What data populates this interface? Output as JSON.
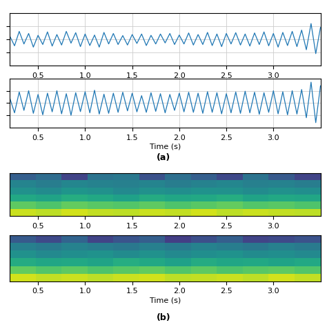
{
  "chart_data": [
    {
      "type": "line",
      "color": "#1f77b4",
      "grid": true,
      "tick_labels": "x",
      "xlim": [
        0.2,
        3.5
      ],
      "xticks": [
        0.5,
        1.0,
        1.5,
        2.0,
        2.5,
        3.0
      ],
      "ylim": [
        -1,
        1
      ],
      "yticks": [
        -0.5,
        0,
        0.5
      ],
      "x": [
        0.2,
        0.25,
        0.3,
        0.35,
        0.4,
        0.45,
        0.5,
        0.55,
        0.6,
        0.65,
        0.7,
        0.75,
        0.8,
        0.85,
        0.9,
        0.95,
        1.0,
        1.05,
        1.1,
        1.15,
        1.2,
        1.25,
        1.3,
        1.35,
        1.4,
        1.45,
        1.5,
        1.55,
        1.6,
        1.65,
        1.7,
        1.75,
        1.8,
        1.85,
        1.9,
        1.95,
        2.0,
        2.05,
        2.1,
        2.15,
        2.2,
        2.25,
        2.3,
        2.35,
        2.4,
        2.45,
        2.5,
        2.55,
        2.6,
        2.65,
        2.7,
        2.75,
        2.8,
        2.85,
        2.9,
        2.95,
        3.0,
        3.05,
        3.1,
        3.15,
        3.2,
        3.25,
        3.3,
        3.35,
        3.4,
        3.45,
        3.5
      ],
      "values": [
        0.12,
        -0.25,
        0.3,
        -0.18,
        0.22,
        -0.3,
        0.15,
        -0.2,
        0.28,
        -0.26,
        0.18,
        -0.22,
        0.3,
        -0.15,
        0.25,
        -0.28,
        0.2,
        -0.24,
        0.16,
        -0.3,
        0.26,
        -0.18,
        0.22,
        -0.2,
        0.14,
        -0.22,
        0.18,
        -0.16,
        0.2,
        -0.24,
        0.15,
        -0.18,
        0.2,
        -0.14,
        0.22,
        -0.2,
        0.16,
        -0.18,
        0.24,
        -0.22,
        0.18,
        -0.2,
        0.26,
        -0.24,
        0.2,
        -0.28,
        0.22,
        -0.18,
        0.25,
        -0.22,
        0.2,
        -0.26,
        0.24,
        -0.2,
        0.28,
        -0.25,
        0.22,
        -0.3,
        0.26,
        -0.24,
        0.3,
        -0.28,
        0.35,
        -0.4,
        0.6,
        -0.55,
        0.45
      ]
    },
    {
      "type": "line",
      "color": "#1f77b4",
      "grid": true,
      "tick_labels": "x",
      "x_label": "Time (s)",
      "caption": "(a)",
      "xlim": [
        0.2,
        3.5
      ],
      "xticks": [
        0.5,
        1.0,
        1.5,
        2.0,
        2.5,
        3.0
      ],
      "ylim": [
        -1,
        1
      ],
      "yticks": [
        -0.5,
        0,
        0.5
      ],
      "x": [
        0.2,
        0.25,
        0.3,
        0.35,
        0.4,
        0.45,
        0.5,
        0.55,
        0.6,
        0.65,
        0.7,
        0.75,
        0.8,
        0.85,
        0.9,
        0.95,
        1.0,
        1.05,
        1.1,
        1.15,
        1.2,
        1.25,
        1.3,
        1.35,
        1.4,
        1.45,
        1.5,
        1.55,
        1.6,
        1.65,
        1.7,
        1.75,
        1.8,
        1.85,
        1.9,
        1.95,
        2.0,
        2.05,
        2.1,
        2.15,
        2.2,
        2.25,
        2.3,
        2.35,
        2.4,
        2.45,
        2.5,
        2.55,
        2.6,
        2.65,
        2.7,
        2.75,
        2.8,
        2.85,
        2.9,
        2.95,
        3.0,
        3.05,
        3.1,
        3.15,
        3.2,
        3.25,
        3.3,
        3.35,
        3.4,
        3.45,
        3.5
      ],
      "values": [
        0.2,
        -0.4,
        0.45,
        -0.3,
        0.5,
        -0.42,
        0.35,
        -0.48,
        0.4,
        -0.36,
        0.5,
        -0.44,
        0.38,
        -0.5,
        0.42,
        -0.35,
        0.46,
        -0.4,
        0.52,
        -0.45,
        0.36,
        -0.42,
        0.4,
        -0.38,
        0.44,
        -0.32,
        0.4,
        -0.36,
        0.3,
        -0.38,
        0.42,
        -0.34,
        0.38,
        -0.4,
        0.35,
        -0.3,
        0.4,
        -0.36,
        0.44,
        -0.38,
        0.4,
        -0.42,
        0.46,
        -0.38,
        0.42,
        -0.44,
        0.38,
        -0.4,
        0.45,
        -0.42,
        0.48,
        -0.4,
        0.44,
        -0.46,
        0.42,
        -0.38,
        0.5,
        -0.44,
        0.46,
        -0.48,
        0.5,
        -0.45,
        0.55,
        -0.6,
        0.85,
        -0.8,
        0.7
      ]
    },
    {
      "type": "heatmap",
      "grid": false,
      "tick_labels": "x",
      "xlim": [
        0.2,
        3.5
      ],
      "xticks": [
        0.5,
        1.0,
        1.5,
        2.0,
        2.5,
        3.0
      ],
      "color_range": [
        0,
        1
      ],
      "cells": [
        [
          0.92,
          0.9,
          0.93,
          0.91,
          0.9,
          0.92,
          0.91,
          0.93,
          0.9,
          0.92,
          0.91,
          0.9
        ],
        [
          0.75,
          0.72,
          0.76,
          0.74,
          0.73,
          0.75,
          0.72,
          0.74,
          0.76,
          0.73,
          0.74,
          0.72
        ],
        [
          0.6,
          0.58,
          0.62,
          0.6,
          0.57,
          0.61,
          0.59,
          0.6,
          0.62,
          0.58,
          0.6,
          0.59
        ],
        [
          0.5,
          0.48,
          0.52,
          0.5,
          0.47,
          0.5,
          0.49,
          0.51,
          0.5,
          0.48,
          0.5,
          0.49
        ],
        [
          0.45,
          0.42,
          0.46,
          0.44,
          0.43,
          0.45,
          0.42,
          0.44,
          0.46,
          0.43,
          0.44,
          0.42
        ],
        [
          0.3,
          0.35,
          0.2,
          0.38,
          0.4,
          0.25,
          0.36,
          0.3,
          0.22,
          0.38,
          0.28,
          0.2
        ]
      ]
    },
    {
      "type": "heatmap",
      "grid": false,
      "tick_labels": "x",
      "x_label": "Time (s)",
      "caption": "(b)",
      "xlim": [
        0.2,
        3.5
      ],
      "xticks": [
        0.5,
        1.0,
        1.5,
        2.0,
        2.5,
        3.0
      ],
      "color_range": [
        0,
        1
      ],
      "cells": [
        [
          0.93,
          0.91,
          0.92,
          0.9,
          0.92,
          0.93,
          0.9,
          0.91,
          0.92,
          0.9,
          0.93,
          0.91
        ],
        [
          0.76,
          0.73,
          0.75,
          0.72,
          0.74,
          0.76,
          0.73,
          0.75,
          0.72,
          0.74,
          0.75,
          0.73
        ],
        [
          0.61,
          0.59,
          0.6,
          0.58,
          0.62,
          0.6,
          0.57,
          0.61,
          0.59,
          0.6,
          0.58,
          0.6
        ],
        [
          0.5,
          0.47,
          0.49,
          0.51,
          0.48,
          0.5,
          0.47,
          0.49,
          0.51,
          0.48,
          0.49,
          0.47
        ],
        [
          0.43,
          0.41,
          0.44,
          0.42,
          0.4,
          0.43,
          0.41,
          0.44,
          0.42,
          0.4,
          0.43,
          0.41
        ],
        [
          0.28,
          0.22,
          0.32,
          0.2,
          0.26,
          0.3,
          0.18,
          0.24,
          0.3,
          0.2,
          0.22,
          0.25
        ]
      ]
    }
  ]
}
